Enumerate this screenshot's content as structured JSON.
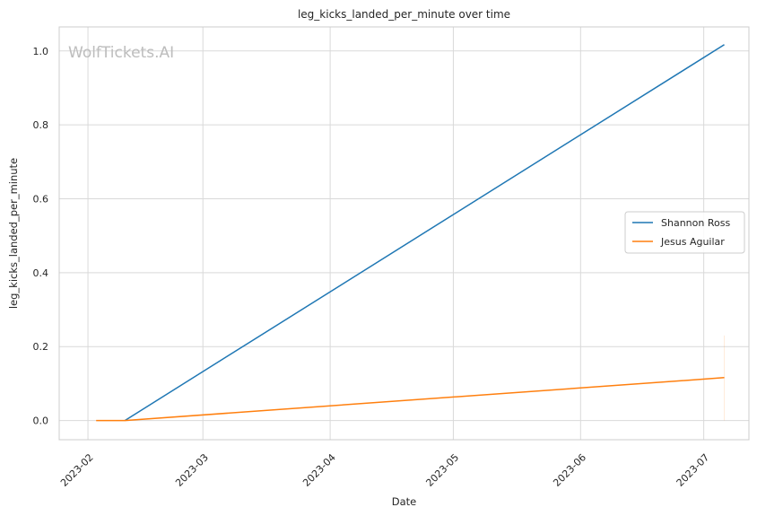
{
  "chart_data": {
    "type": "line",
    "title": "leg_kicks_landed_per_minute over time",
    "xlabel": "Date",
    "ylabel": "leg_kicks_landed_per_minute",
    "watermark": "WolfTickets.AI",
    "x_tick_labels": [
      "2023-02",
      "2023-03",
      "2023-04",
      "2023-05",
      "2023-06",
      "2023-07"
    ],
    "x_tick_dates": [
      "2023-02-01",
      "2023-03-01",
      "2023-04-01",
      "2023-05-01",
      "2023-06-01",
      "2023-07-01"
    ],
    "xlim": [
      "2023-01-25",
      "2023-07-12"
    ],
    "y_ticks": [
      0.0,
      0.2,
      0.4,
      0.6,
      0.8,
      1.0
    ],
    "y_tick_labels": [
      "0.0",
      "0.2",
      "0.4",
      "0.6",
      "0.8",
      "1.0"
    ],
    "ylim": [
      -0.052,
      1.065
    ],
    "grid": true,
    "legend_position": "center-right",
    "series": [
      {
        "name": "Shannon Ross",
        "color": "#1f77b4",
        "points": [
          {
            "x": "2023-02-10",
            "y": 0.0
          },
          {
            "x": "2023-07-06",
            "y": 1.017
          }
        ]
      },
      {
        "name": "Jesus Aguilar",
        "color": "#ff7f0e",
        "points": [
          {
            "x": "2023-02-03",
            "y": 0.0
          },
          {
            "x": "2023-02-10",
            "y": 0.0
          },
          {
            "x": "2023-07-06",
            "y": 0.116
          }
        ]
      }
    ]
  }
}
